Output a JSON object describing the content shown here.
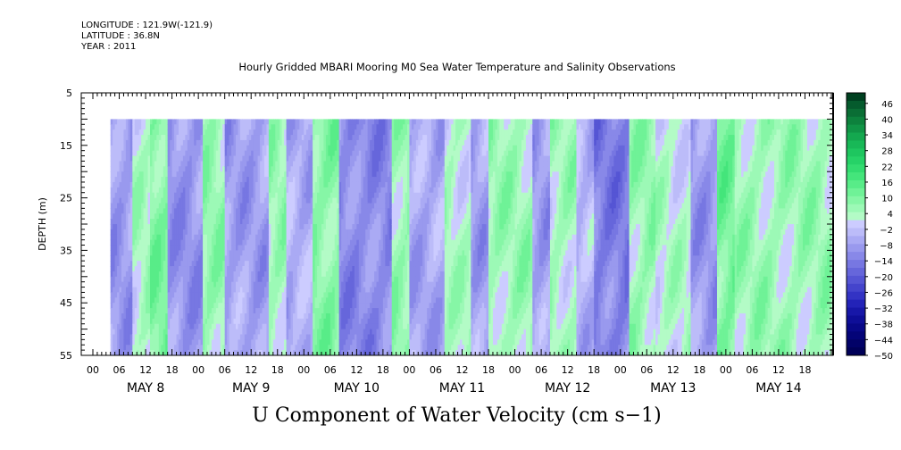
{
  "header": {
    "longitude": "LONGITUDE : 121.9W(-121.9)",
    "latitude": "LATITUDE : 36.8N",
    "year": "YEAR : 2011"
  },
  "chart_data": {
    "type": "heatmap",
    "title": "Hourly Gridded MBARI Mooring M0 Sea Water Temperature and Salinity Observations",
    "bottom_title": "U Component of Water Velocity (cm s−1)",
    "ylabel": "DEPTH (m)",
    "yticks": [
      "5",
      "15",
      "25",
      "35",
      "45",
      "55"
    ],
    "ylim": [
      5,
      55
    ],
    "y_inverted": true,
    "data_depth_range": [
      10,
      55
    ],
    "xlim_hours": [
      0,
      168
    ],
    "hour_ticks": [
      "00",
      "06",
      "12",
      "18",
      "00",
      "06",
      "12",
      "18",
      "00",
      "06",
      "12",
      "18",
      "00",
      "06",
      "12",
      "18",
      "00",
      "06",
      "12",
      "18",
      "00",
      "06",
      "12",
      "18",
      "00",
      "06",
      "12",
      "18"
    ],
    "day_labels": [
      "MAY  8",
      "MAY  9",
      "MAY 10",
      "MAY 11",
      "MAY 12",
      "MAY 13",
      "MAY 14"
    ],
    "colorbar": {
      "labels": [
        "46",
        "40",
        "34",
        "28",
        "22",
        "16",
        "10",
        "4",
        "−2",
        "−8",
        "−14",
        "−20",
        "−26",
        "−32",
        "−38",
        "−44",
        "−50"
      ],
      "levels": [
        50,
        46,
        43,
        40,
        37,
        34,
        31,
        28,
        25,
        22,
        19,
        16,
        13,
        10,
        7,
        4,
        1,
        -2,
        -5,
        -8,
        -11,
        -14,
        -17,
        -20,
        -23,
        -26,
        -29,
        -32,
        -35,
        -38,
        -41,
        -44,
        -47,
        -50
      ],
      "colors": [
        "#004020",
        "#055b2d",
        "#0a6e35",
        "#0d823d",
        "#109546",
        "#14a84f",
        "#18b857",
        "#1ec65f",
        "#26d267",
        "#33dc70",
        "#44e57b",
        "#58ec88",
        "#6ff297",
        "#86f6a6",
        "#9cf9b6",
        "#b3fbc6",
        "#ccccff",
        "#bcbcf9",
        "#aaaaf4",
        "#9999ee",
        "#8888e8",
        "#7777e2",
        "#6666db",
        "#5555d4",
        "#4444cc",
        "#3333c4",
        "#2323b8",
        "#1717a8",
        "#0e0e98",
        "#080888",
        "#040478",
        "#020268",
        "#000058"
      ]
    },
    "field_summary": [
      {
        "hours": [
          0,
          4
        ],
        "depth": [
          10,
          55
        ],
        "u": null
      },
      {
        "hours": [
          4,
          9
        ],
        "depth": [
          10,
          55
        ],
        "u": -9
      },
      {
        "hours": [
          9,
          13
        ],
        "depth": [
          10,
          55
        ],
        "u": 3
      },
      {
        "hours": [
          13,
          17
        ],
        "depth": [
          10,
          55
        ],
        "u": 9
      },
      {
        "hours": [
          17,
          25
        ],
        "depth": [
          10,
          55
        ],
        "u": -10
      },
      {
        "hours": [
          25,
          30
        ],
        "depth": [
          10,
          55
        ],
        "u": 6
      },
      {
        "hours": [
          30,
          40
        ],
        "depth": [
          10,
          55
        ],
        "u": -8
      },
      {
        "hours": [
          40,
          44
        ],
        "depth": [
          10,
          55
        ],
        "u": 5
      },
      {
        "hours": [
          44,
          50
        ],
        "depth": [
          10,
          55
        ],
        "u": -6
      },
      {
        "hours": [
          50,
          56
        ],
        "depth": [
          10,
          55
        ],
        "u": 8
      },
      {
        "hours": [
          56,
          68
        ],
        "depth": [
          10,
          55
        ],
        "u": -12
      },
      {
        "hours": [
          68,
          72
        ],
        "depth": [
          10,
          55
        ],
        "u": 6
      },
      {
        "hours": [
          72,
          80
        ],
        "depth": [
          10,
          55
        ],
        "u": -7
      },
      {
        "hours": [
          80,
          86
        ],
        "depth": [
          10,
          55
        ],
        "u": 3
      },
      {
        "hours": [
          86,
          90
        ],
        "depth": [
          10,
          55
        ],
        "u": -8
      },
      {
        "hours": [
          90,
          100
        ],
        "depth": [
          10,
          55
        ],
        "u": 5
      },
      {
        "hours": [
          100,
          104
        ],
        "depth": [
          10,
          55
        ],
        "u": -8
      },
      {
        "hours": [
          104,
          110
        ],
        "depth": [
          10,
          55
        ],
        "u": 4
      },
      {
        "hours": [
          110,
          114
        ],
        "depth": [
          10,
          55
        ],
        "u": -5
      },
      {
        "hours": [
          114,
          122
        ],
        "depth": [
          10,
          55
        ],
        "u": -14
      },
      {
        "hours": [
          122,
          128
        ],
        "depth": [
          10,
          55
        ],
        "u": 6
      },
      {
        "hours": [
          128,
          136
        ],
        "depth": [
          10,
          55
        ],
        "u": 2
      },
      {
        "hours": [
          136,
          142
        ],
        "depth": [
          10,
          55
        ],
        "u": -9
      },
      {
        "hours": [
          142,
          146
        ],
        "depth": [
          10,
          55
        ],
        "u": 10
      },
      {
        "hours": [
          146,
          168
        ],
        "depth": [
          10,
          55
        ],
        "u": 5
      }
    ]
  }
}
